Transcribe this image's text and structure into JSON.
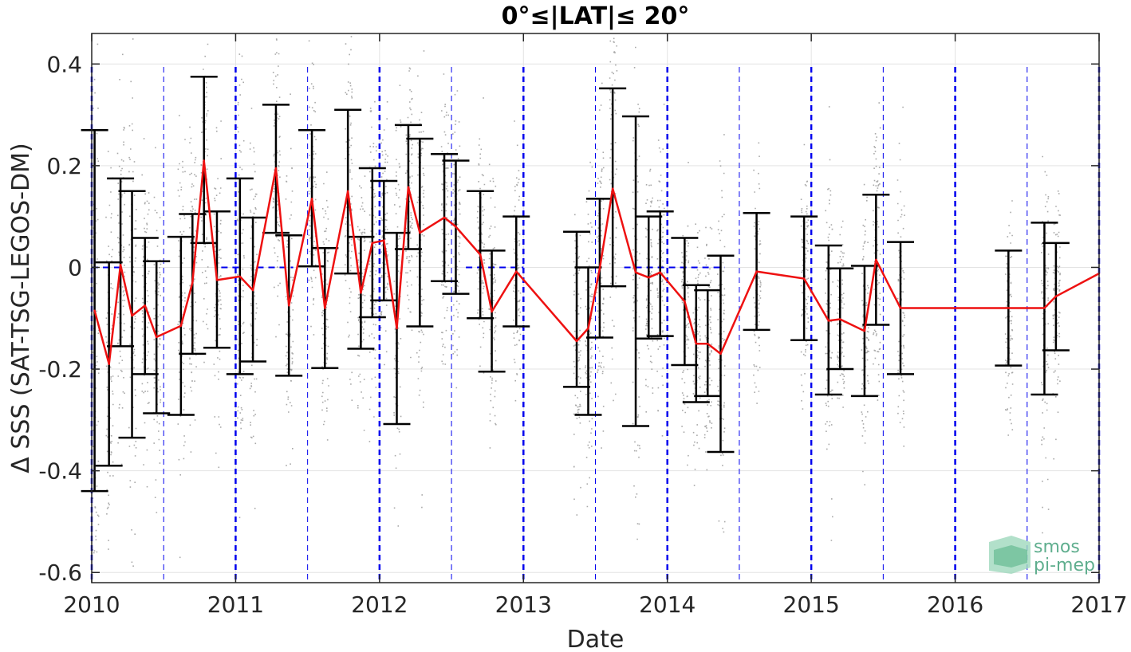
{
  "chart_data": {
    "type": "line",
    "title": "0°≤|LAT|≤ 20°",
    "xlabel": "Date",
    "ylabel": "Δ SSS (SAT-TSG-LEGOS-DM)",
    "xlim": [
      2010,
      2017
    ],
    "ylim": [
      -0.62,
      0.46
    ],
    "x_ticks": [
      2010,
      2011,
      2012,
      2013,
      2014,
      2015,
      2016,
      2017
    ],
    "x_tick_labels": [
      "2010",
      "2011",
      "2012",
      "2013",
      "2014",
      "2015",
      "2016",
      "2017"
    ],
    "y_ticks": [
      0.4,
      0.2,
      0,
      -0.2,
      -0.4,
      -0.6
    ],
    "y_tick_labels": [
      "0.4",
      "0.2",
      "0",
      "-0.2",
      "-0.4",
      "-0.6"
    ],
    "grid": true,
    "zero_reference_line": {
      "value": 0,
      "segments": [
        [
          2010,
          2010.2
        ],
        [
          2010.9,
          2011.05
        ],
        [
          2011.15,
          2011.4
        ],
        [
          2012.6,
          2013.0
        ],
        [
          2013.7,
          2014.4
        ]
      ],
      "color": "#0000ee"
    },
    "vertical_reference_lines": {
      "year_lines": [
        2010,
        2011,
        2012,
        2013,
        2014,
        2015,
        2016,
        2017
      ],
      "half_year_lines": [
        2010.5,
        2011.5,
        2012.5,
        2013.5,
        2014.5,
        2015.5,
        2016.5
      ],
      "color": "#0000ee"
    },
    "series": [
      {
        "name": "",
        "color": "#ee1111",
        "points": [
          {
            "x": 2010.02,
            "y": -0.085,
            "upper": 0.27,
            "lower": -0.44
          },
          {
            "x": 2010.12,
            "y": -0.19,
            "upper": 0.01,
            "lower": -0.39
          },
          {
            "x": 2010.2,
            "y": 0.005,
            "upper": 0.175,
            "lower": -0.155
          },
          {
            "x": 2010.28,
            "y": -0.095,
            "upper": 0.15,
            "lower": -0.335
          },
          {
            "x": 2010.37,
            "y": -0.075,
            "upper": 0.058,
            "lower": -0.21
          },
          {
            "x": 2010.45,
            "y": -0.137,
            "upper": 0.012,
            "lower": -0.287
          },
          {
            "x": 2010.62,
            "y": -0.115,
            "upper": 0.06,
            "lower": -0.29
          },
          {
            "x": 2010.7,
            "y": -0.03,
            "upper": 0.105,
            "lower": -0.17
          },
          {
            "x": 2010.78,
            "y": 0.21,
            "upper": 0.375,
            "lower": 0.048
          },
          {
            "x": 2010.87,
            "y": -0.025,
            "upper": 0.11,
            "lower": -0.158
          },
          {
            "x": 2011.03,
            "y": -0.018,
            "upper": 0.175,
            "lower": -0.21
          },
          {
            "x": 2011.12,
            "y": -0.045,
            "upper": 0.098,
            "lower": -0.185
          },
          {
            "x": 2011.28,
            "y": 0.195,
            "upper": 0.32,
            "lower": 0.068
          },
          {
            "x": 2011.37,
            "y": -0.075,
            "upper": 0.063,
            "lower": -0.213
          },
          {
            "x": 2011.53,
            "y": 0.135,
            "upper": 0.27,
            "lower": 0.002
          },
          {
            "x": 2011.62,
            "y": -0.08,
            "upper": 0.038,
            "lower": -0.198
          },
          {
            "x": 2011.78,
            "y": 0.15,
            "upper": 0.31,
            "lower": -0.012
          },
          {
            "x": 2011.87,
            "y": -0.05,
            "upper": 0.06,
            "lower": -0.16
          },
          {
            "x": 2011.95,
            "y": 0.048,
            "upper": 0.195,
            "lower": -0.098
          },
          {
            "x": 2012.03,
            "y": 0.053,
            "upper": 0.17,
            "lower": -0.065
          },
          {
            "x": 2012.12,
            "y": -0.12,
            "upper": 0.068,
            "lower": -0.308
          },
          {
            "x": 2012.2,
            "y": 0.158,
            "upper": 0.28,
            "lower": 0.036
          },
          {
            "x": 2012.28,
            "y": 0.068,
            "upper": 0.253,
            "lower": -0.116
          },
          {
            "x": 2012.45,
            "y": 0.098,
            "upper": 0.223,
            "lower": -0.027
          },
          {
            "x": 2012.53,
            "y": 0.08,
            "upper": 0.21,
            "lower": -0.052
          },
          {
            "x": 2012.7,
            "y": 0.025,
            "upper": 0.15,
            "lower": -0.1
          },
          {
            "x": 2012.78,
            "y": -0.087,
            "upper": 0.033,
            "lower": -0.205
          },
          {
            "x": 2012.95,
            "y": -0.008,
            "upper": 0.1,
            "lower": -0.116
          },
          {
            "x": 2013.37,
            "y": -0.145,
            "upper": 0.07,
            "lower": -0.235
          },
          {
            "x": 2013.45,
            "y": -0.12,
            "upper": 0.0,
            "lower": -0.29
          },
          {
            "x": 2013.53,
            "y": -0.002,
            "upper": 0.135,
            "lower": -0.138
          },
          {
            "x": 2013.62,
            "y": 0.155,
            "upper": 0.352,
            "lower": -0.037
          },
          {
            "x": 2013.78,
            "y": -0.01,
            "upper": 0.297,
            "lower": -0.312
          },
          {
            "x": 2013.87,
            "y": -0.02,
            "upper": 0.1,
            "lower": -0.14
          },
          {
            "x": 2013.95,
            "y": -0.01,
            "upper": 0.11,
            "lower": -0.135
          },
          {
            "x": 2014.12,
            "y": -0.067,
            "upper": 0.058,
            "lower": -0.192
          },
          {
            "x": 2014.2,
            "y": -0.15,
            "upper": -0.035,
            "lower": -0.265
          },
          {
            "x": 2014.28,
            "y": -0.15,
            "upper": -0.045,
            "lower": -0.253
          },
          {
            "x": 2014.37,
            "y": -0.17,
            "upper": 0.023,
            "lower": -0.363
          },
          {
            "x": 2014.62,
            "y": -0.008,
            "upper": 0.107,
            "lower": -0.123
          },
          {
            "x": 2014.95,
            "y": -0.022,
            "upper": 0.1,
            "lower": -0.143
          },
          {
            "x": 2015.12,
            "y": -0.105,
            "upper": 0.043,
            "lower": -0.25
          },
          {
            "x": 2015.2,
            "y": -0.102,
            "upper": -0.002,
            "lower": -0.2
          },
          {
            "x": 2015.37,
            "y": -0.125,
            "upper": 0.003,
            "lower": -0.253
          },
          {
            "x": 2015.45,
            "y": 0.015,
            "upper": 0.143,
            "lower": -0.113
          },
          {
            "x": 2015.62,
            "y": -0.08,
            "upper": 0.05,
            "lower": -0.21
          },
          {
            "x": 2016.37,
            "y": -0.08,
            "upper": 0.033,
            "lower": -0.193
          },
          {
            "x": 2016.62,
            "y": -0.08,
            "upper": 0.088,
            "lower": -0.25
          },
          {
            "x": 2016.7,
            "y": -0.057,
            "upper": 0.048,
            "lower": -0.163
          },
          {
            "x": 2017.0,
            "y": -0.012
          }
        ]
      }
    ],
    "scatter_color": "#8c8c8c",
    "errorbar_color": "#000000"
  },
  "logo": {
    "line1": "smos",
    "line2": "pi-mep"
  }
}
